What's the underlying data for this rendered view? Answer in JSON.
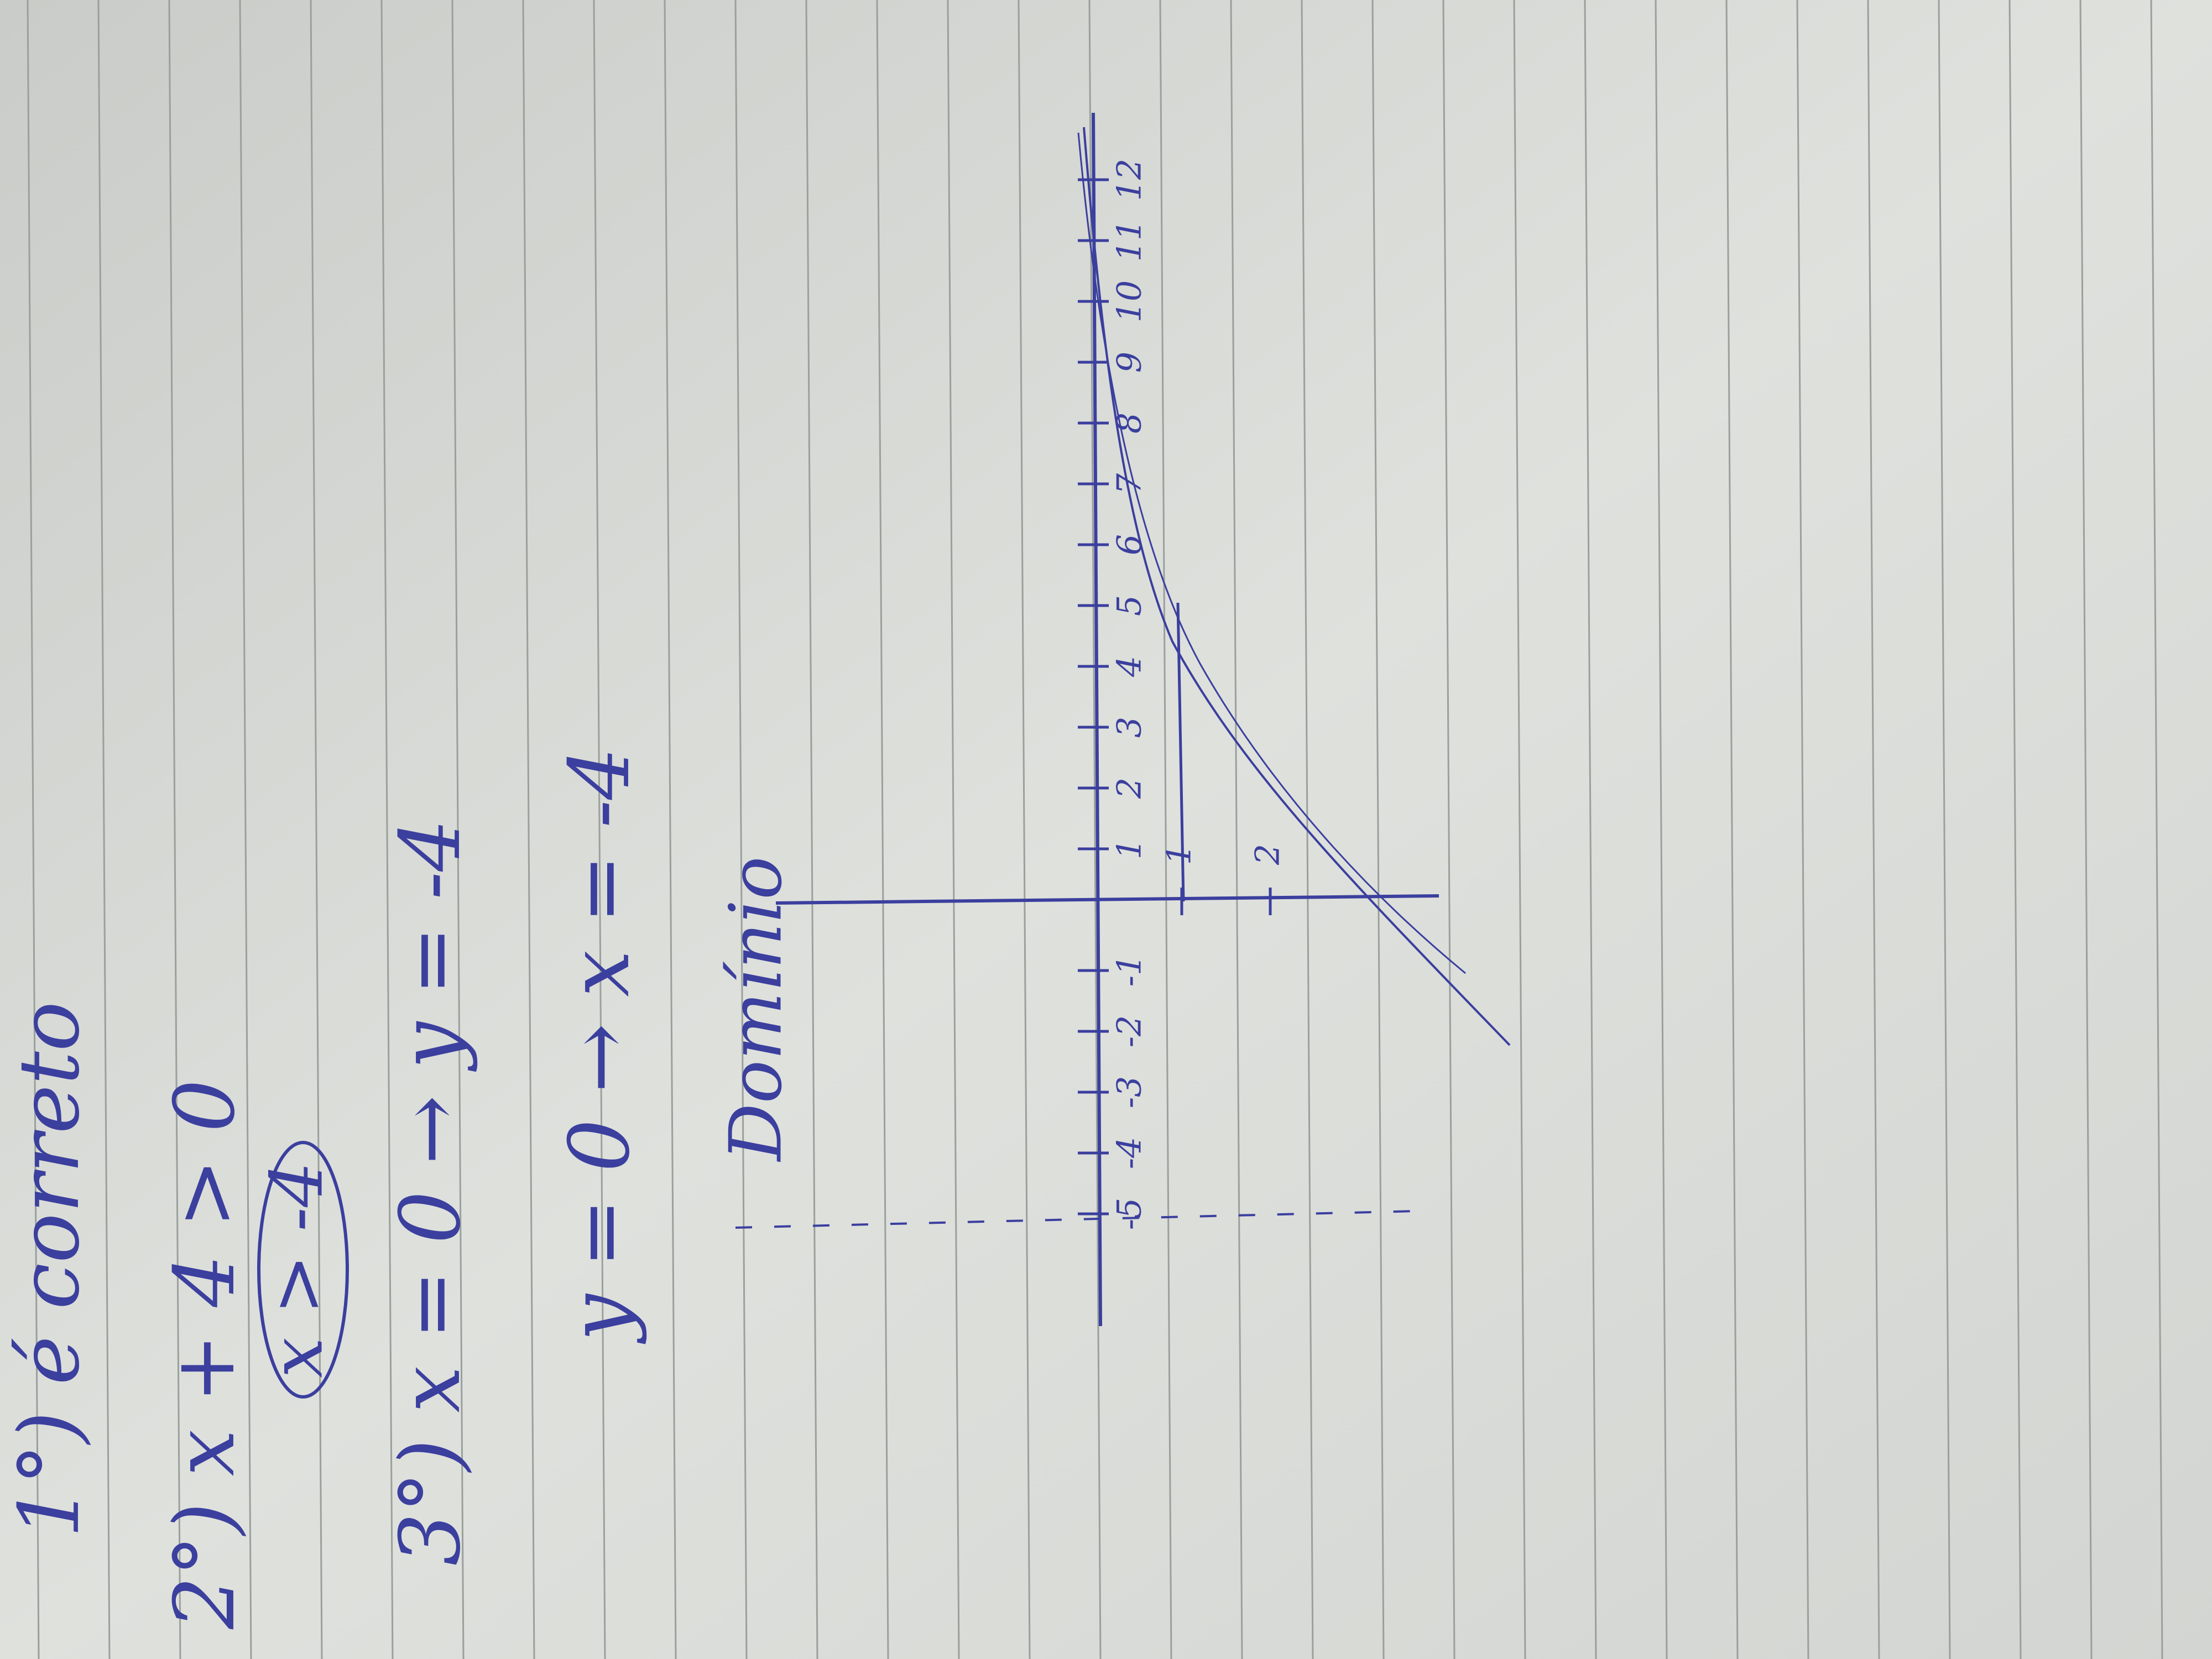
{
  "notes": [
    "1°) é correto",
    "2°) x + 4 > 0",
    "x > -4",
    "3°) x = 0 → y = -4",
    "y = 0 → x = -4",
    "Domínio"
  ],
  "graph": {
    "x_ticks": [
      -5,
      -4,
      -3,
      -2,
      -1,
      1,
      2,
      3,
      4,
      5,
      6,
      7,
      8,
      9,
      10,
      11,
      12
    ],
    "y_ticks": [
      1,
      2
    ]
  }
}
